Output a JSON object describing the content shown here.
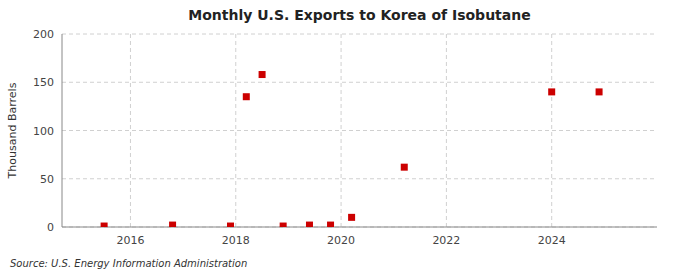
{
  "chart_data": {
    "type": "scatter",
    "title": "Monthly U.S. Exports to Korea of Isobutane",
    "y_label": "Thousand Barrels",
    "annotations": [
      "Source: U.S. Energy Information Administration"
    ],
    "x": [
      2015.5,
      2016.8,
      2017.9,
      2018.2,
      2018.5,
      2018.9,
      2019.4,
      2019.8,
      2020.2,
      2021.2,
      2024.0,
      2024.9
    ],
    "values": [
      1,
      2,
      1,
      135,
      158,
      1,
      2,
      2,
      10,
      62,
      140,
      140
    ],
    "color": "#cc0000",
    "marker": "square",
    "xlim": [
      2014.7,
      2026.0
    ],
    "xticks": [
      2016,
      2018,
      2020,
      2022,
      2024
    ],
    "ylim": [
      0,
      200
    ],
    "yticks": [
      0,
      50,
      100,
      150,
      200
    ],
    "grid": true
  }
}
